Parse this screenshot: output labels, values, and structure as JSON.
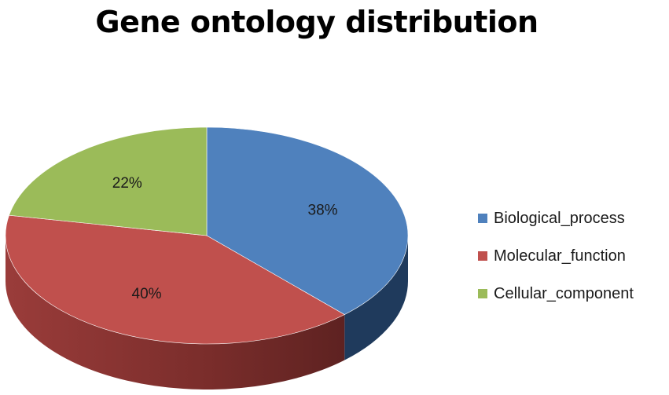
{
  "chart_data": {
    "type": "pie",
    "title": "Gene ontology distribution",
    "slices": [
      {
        "label": "Biological_process",
        "value": 38,
        "value_label": "38%",
        "color": "#4f81bd"
      },
      {
        "label": "Molecular_function",
        "value": 40,
        "value_label": "40%",
        "color": "#c0504d"
      },
      {
        "label": "Cellular_component",
        "value": 22,
        "value_label": "22%",
        "color": "#9bbb59"
      }
    ],
    "style": "3d",
    "legend_position": "right"
  }
}
